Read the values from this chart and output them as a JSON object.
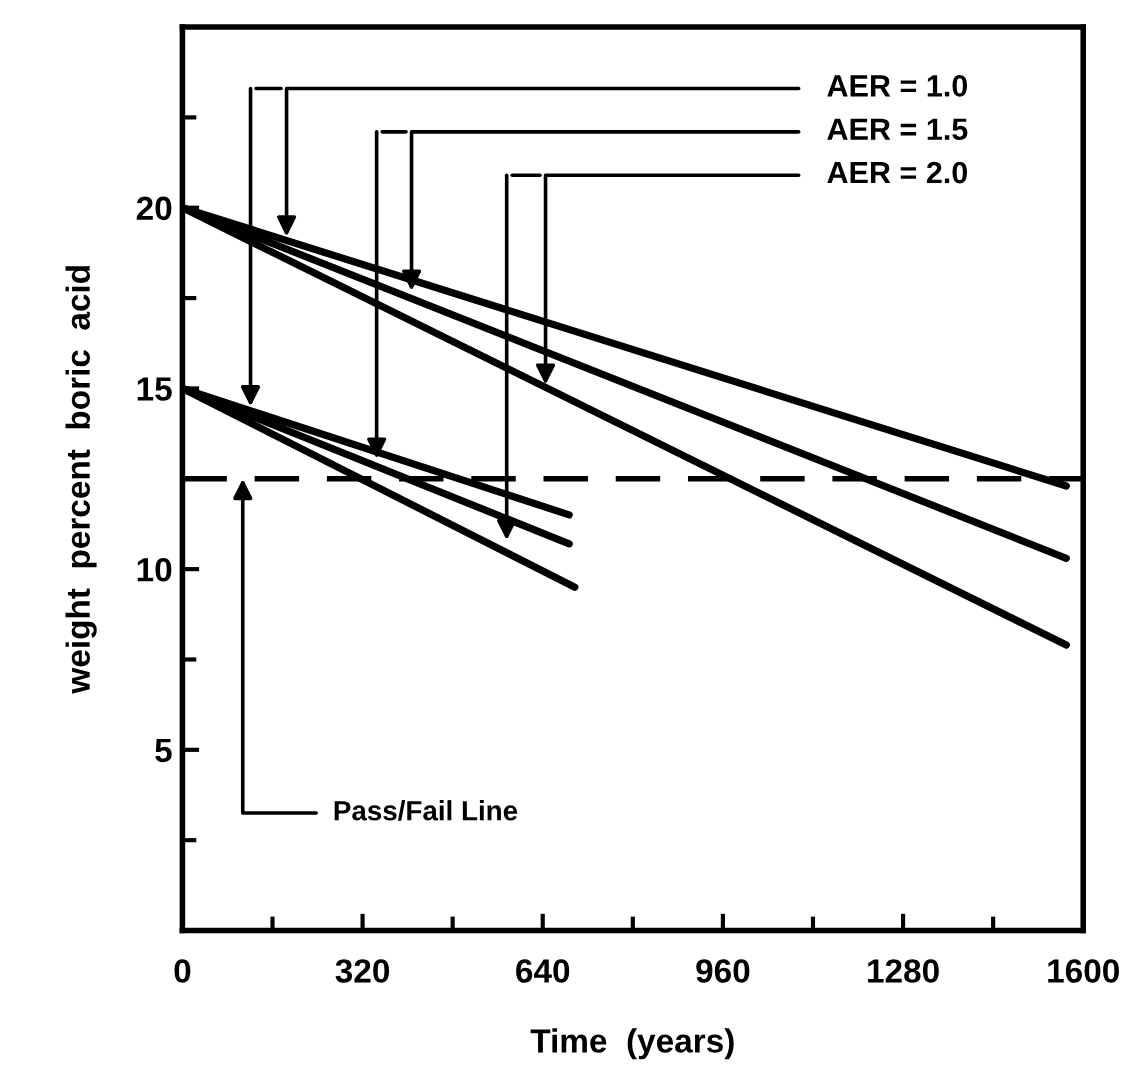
{
  "chart_data": {
    "type": "line",
    "xlabel": "Time  (years)",
    "ylabel": "weight  percent  boric  acid",
    "xlim": [
      0,
      1600
    ],
    "ylim": [
      0,
      25
    ],
    "xticks": [
      0,
      320,
      640,
      960,
      1280,
      1600
    ],
    "yticks": [
      5,
      10,
      15,
      20
    ],
    "grid": false,
    "legend": false,
    "marker": "none",
    "line_style": "solid",
    "series": [
      {
        "color": "#000000",
        "x": [
          0,
          1570
        ],
        "values": [
          20,
          12.3
        ]
      },
      {
        "color": "#000000",
        "x": [
          0,
          1570
        ],
        "values": [
          20,
          10.3
        ]
      },
      {
        "color": "#000000",
        "x": [
          0,
          1570
        ],
        "values": [
          20,
          7.9
        ]
      },
      {
        "color": "#000000",
        "x": [
          0,
          687
        ],
        "values": [
          15,
          11.5
        ]
      },
      {
        "color": "#000000",
        "x": [
          0,
          687
        ],
        "values": [
          15,
          10.7
        ]
      },
      {
        "color": "#000000",
        "x": [
          0,
          697
        ],
        "values": [
          15,
          9.5
        ]
      }
    ],
    "ref_lines": [
      {
        "axis": "y",
        "value": 12.5,
        "label": "Pass/Fail Line",
        "color": "#000000",
        "line_style": "dashed"
      }
    ],
    "annotations": [
      {
        "text": "AER = 1.0",
        "x": 185,
        "y": 19.2
      },
      {
        "text": "AER = 1.5",
        "x": 407,
        "y": 17.7
      },
      {
        "text": "AER = 2.0",
        "x": 645,
        "y": 15.1
      }
    ]
  }
}
